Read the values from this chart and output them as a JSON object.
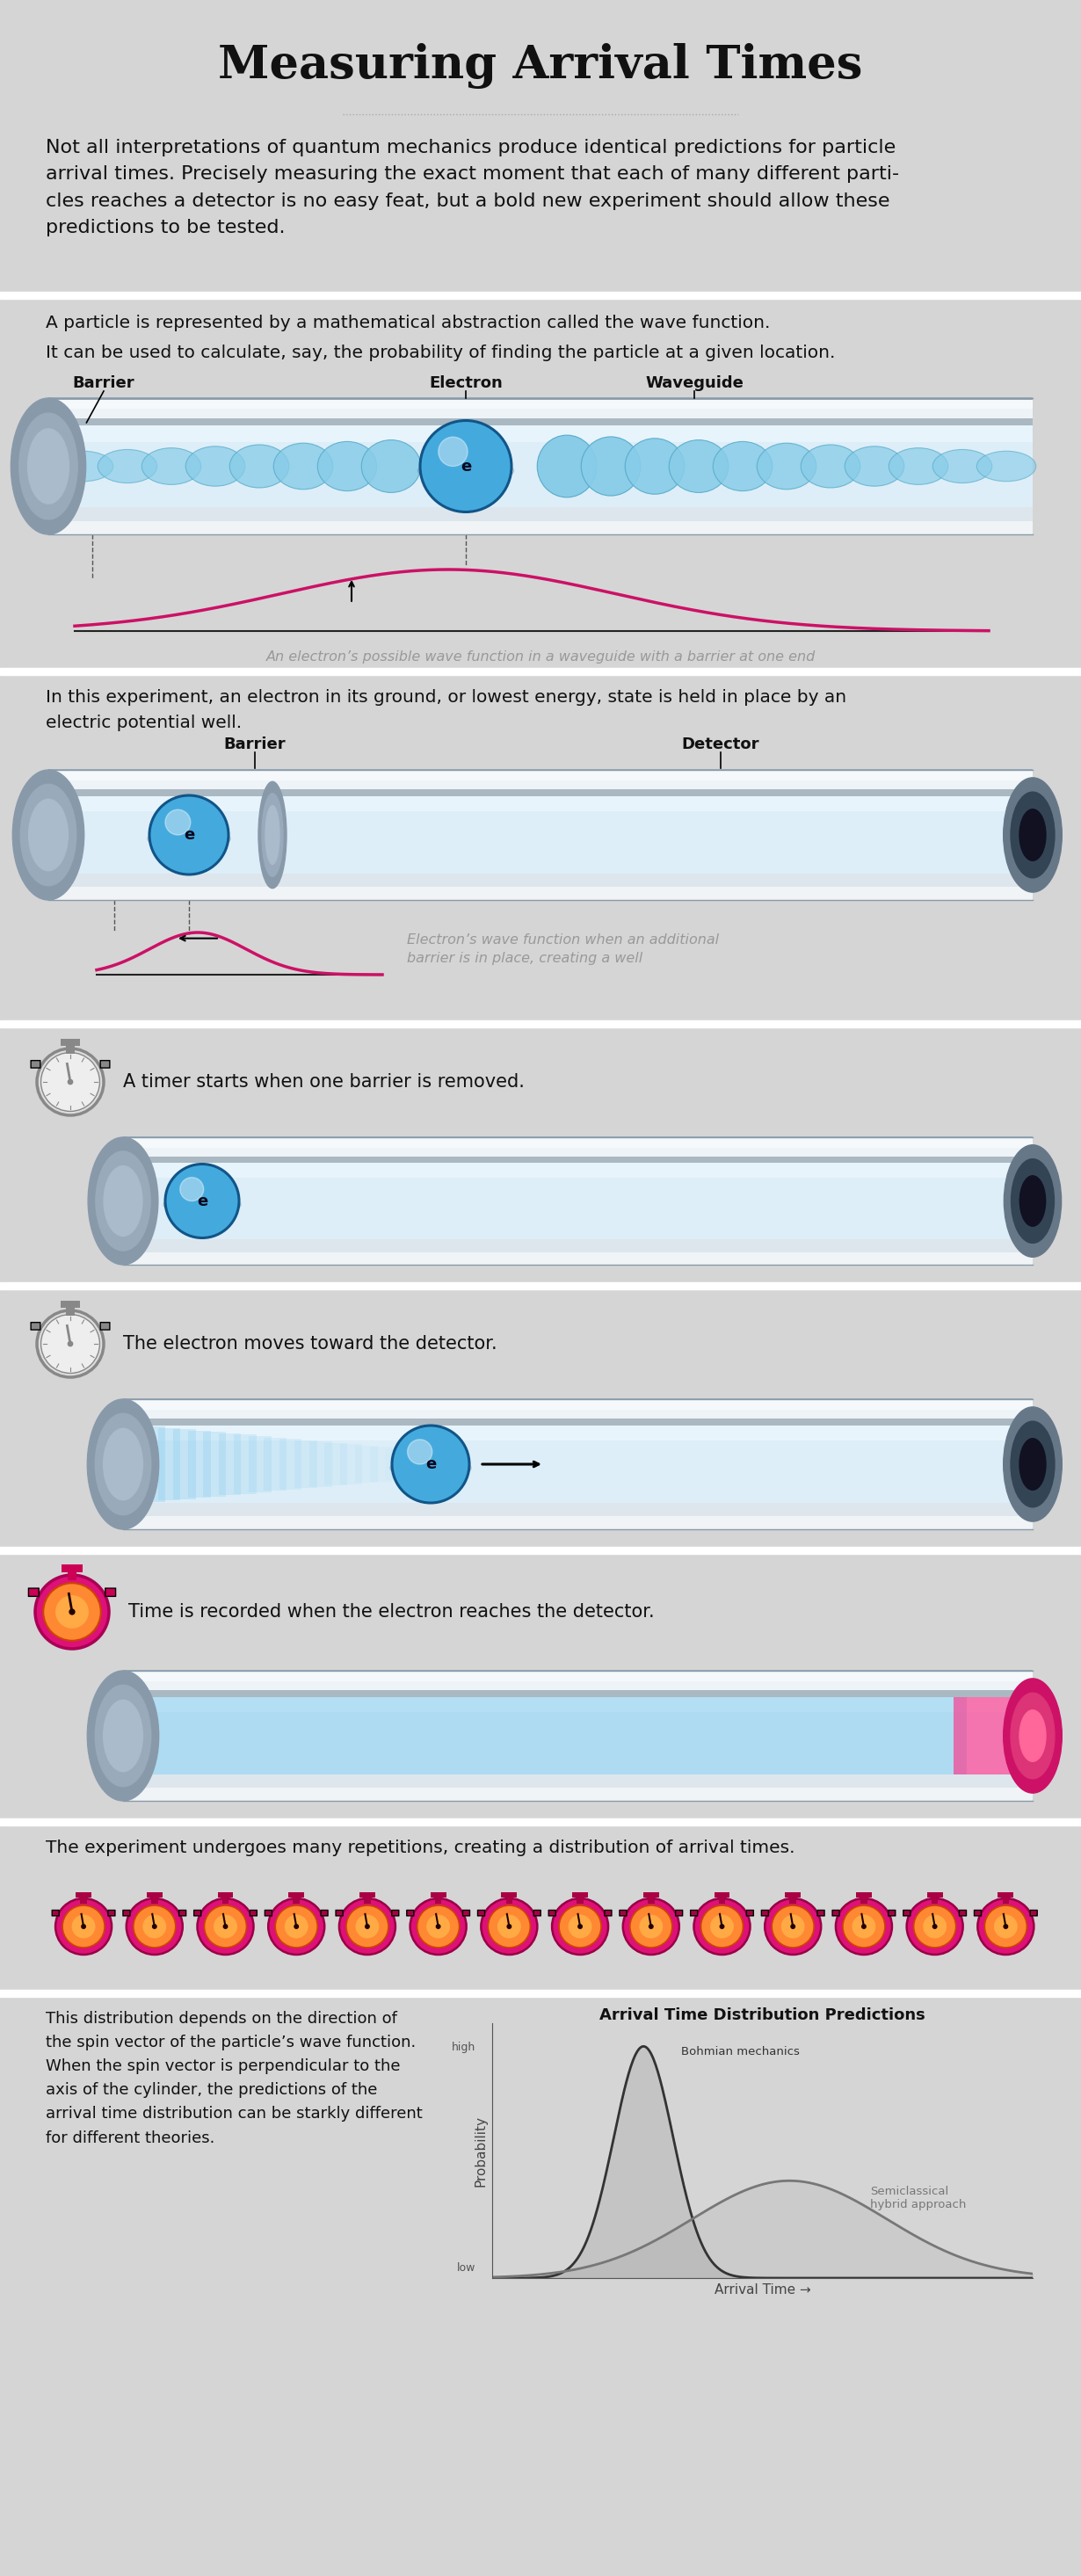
{
  "title": "Measuring Arrival Times",
  "bg_color": "#d5d5d5",
  "title_color": "#111111",
  "text_color": "#111111",
  "gray_text": "#999999",
  "intro_text": "Not all interpretations of quantum mechanics produce identical predictions for particle\narrival times. Precisely measuring the exact moment that each of many different parti-\ncles reaches a detector is no easy feat, but a bold new experiment should allow these\npredictions to be tested.",
  "section1_text_line1": "A particle is represented by a mathematical abstraction called the wave function.",
  "section1_text_line2": "It can be used to calculate, say, the probability of finding the particle at a given location.",
  "section1_caption": "An electron’s possible wave function in a waveguide with a barrier at one end",
  "section2_text": "In this experiment, an electron in its ground, or lowest energy, state is held in place by an\nelectric potential well.",
  "section2_caption_line1": "Electron’s wave function when an additional",
  "section2_caption_line2": "barrier is in place, creating a well",
  "section3_text": "A timer starts when one barrier is removed.",
  "section4_text": "The electron moves toward the detector.",
  "section5_text": "Time is recorded when the electron reaches the detector.",
  "section6_text": "The experiment undergoes many repetitions, creating a distribution of arrival times.",
  "section7_text": "This distribution depends on the direction of\nthe spin vector of the particle’s wave function.\nWhen the spin vector is perpendicular to the\naxis of the cylinder, the predictions of the\narrival time distribution can be starkly different\nfor different theories.",
  "section7_title": "Arrival Time Distribution Predictions",
  "section7_label1": "Bohmian mechanics",
  "section7_label2": "Semiclassical\nhybrid approach",
  "section7_ylabel": "Probability",
  "section7_xlabel": "Arrival Time →",
  "section7_yhigh": "high",
  "section7_ylow": "low",
  "pink_color": "#cc1166",
  "timer_gray": "#888888",
  "timer_pink": "#cc1166",
  "electron_color": "#44aadd",
  "electron_dark": "#1166aa",
  "wave_color": "#88ccee",
  "wave_dark": "#55aacc"
}
